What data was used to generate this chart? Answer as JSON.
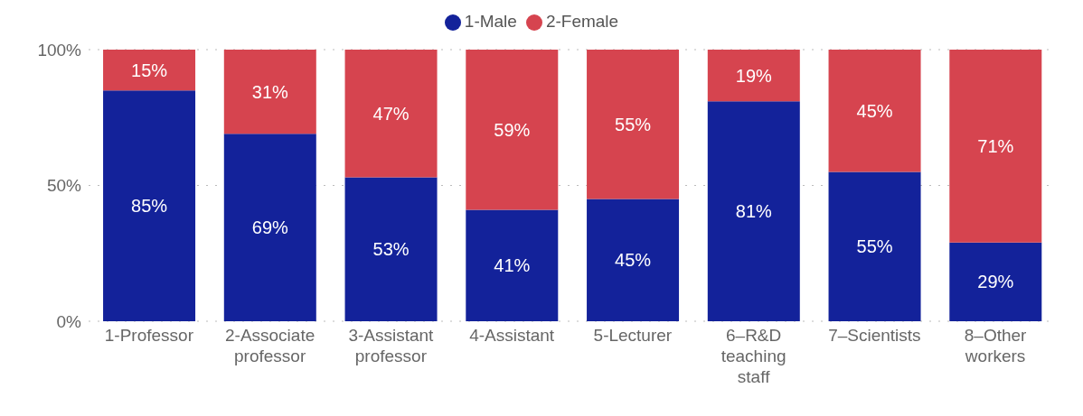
{
  "chart_data": {
    "type": "bar",
    "stacked": true,
    "categories": [
      "1-Professor",
      "2-Associate professor",
      "3-Assistant professor",
      "4-Assistant",
      "5-Lecturer",
      "6–R&D teaching staff",
      "7–Scientists",
      "8–Other workers"
    ],
    "series": [
      {
        "name": "1-Male",
        "color": "#13229a",
        "values": [
          85,
          69,
          53,
          41,
          45,
          81,
          55,
          29
        ],
        "value_labels": [
          "85%",
          "69%",
          "53%",
          "41%",
          "45%",
          "81%",
          "55%",
          "29%"
        ]
      },
      {
        "name": "2-Female",
        "color": "#d6444f",
        "values": [
          15,
          31,
          47,
          59,
          55,
          19,
          45,
          71
        ],
        "value_labels": [
          "15%",
          "31%",
          "47%",
          "59%",
          "55%",
          "19%",
          "45%",
          "71%"
        ]
      }
    ],
    "ylim": [
      0,
      100
    ],
    "yticks": [
      {
        "value": 0,
        "label": "0%"
      },
      {
        "value": 50,
        "label": "50%"
      },
      {
        "value": 100,
        "label": "100%"
      }
    ],
    "grid": "y",
    "legend": "top"
  }
}
